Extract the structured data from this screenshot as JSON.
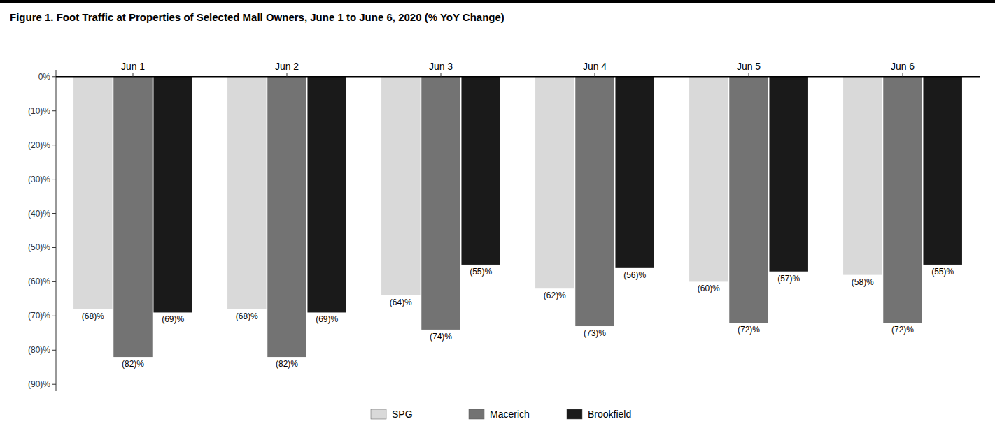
{
  "chart_data": {
    "type": "bar",
    "title": "Figure 1. Foot Traffic at Properties of Selected Mall Owners, June 1 to June 6, 2020 (% YoY Change)",
    "categories": [
      "Jun 1",
      "Jun 2",
      "Jun 3",
      "Jun 4",
      "Jun 5",
      "Jun 6"
    ],
    "series": [
      {
        "name": "SPG",
        "color": "#d9d9d9",
        "values": [
          -68,
          -68,
          -64,
          -62,
          -60,
          -58
        ],
        "value_labels": [
          "(68)%",
          "(68)%",
          "(64)%",
          "(62)%",
          "(60)%",
          "(58)%"
        ]
      },
      {
        "name": "Macerich",
        "color": "#737373",
        "values": [
          -82,
          -82,
          -74,
          -73,
          -72,
          -72
        ],
        "value_labels": [
          "(82)%",
          "(82)%",
          "(74)%",
          "(73)%",
          "(72)%",
          "(72)%"
        ]
      },
      {
        "name": "Brookfield",
        "color": "#1a1a1a",
        "values": [
          -69,
          -69,
          -55,
          -56,
          -57,
          -55
        ],
        "value_labels": [
          "(69)%",
          "(69)%",
          "(55)%",
          "(56)%",
          "(57)%",
          "(55)%"
        ]
      }
    ],
    "ylim": [
      -92,
      2
    ],
    "yticks": [
      {
        "value": 0,
        "label": "0%"
      },
      {
        "value": -10,
        "label": "(10)%"
      },
      {
        "value": -20,
        "label": "(20)%"
      },
      {
        "value": -30,
        "label": "(30)%"
      },
      {
        "value": -40,
        "label": "(40)%"
      },
      {
        "value": -50,
        "label": "(50)%"
      },
      {
        "value": -60,
        "label": "(60)%"
      },
      {
        "value": -70,
        "label": "(70)%"
      },
      {
        "value": -80,
        "label": "(80)%"
      },
      {
        "value": -90,
        "label": "(90)%"
      }
    ],
    "grid": false,
    "data_labels": true,
    "legend": "bottom"
  }
}
